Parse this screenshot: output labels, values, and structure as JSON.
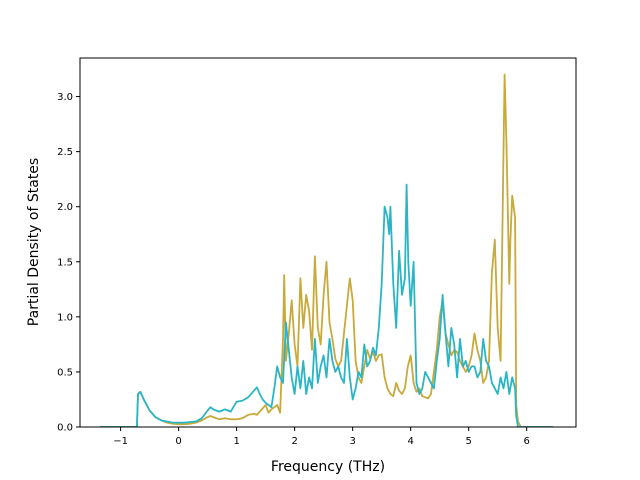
{
  "chart_data": {
    "type": "line",
    "title": "",
    "xlabel": "Frequency (THz)",
    "ylabel": "Partial Density of States",
    "xlim": [
      -1.7,
      6.85
    ],
    "ylim": [
      0.0,
      3.35
    ],
    "xticks": [
      -1,
      0,
      1,
      2,
      3,
      4,
      5,
      6
    ],
    "yticks": [
      0.0,
      0.5,
      1.0,
      1.5,
      2.0,
      2.5,
      3.0
    ],
    "xtick_labels": [
      "−1",
      "0",
      "1",
      "2",
      "3",
      "4",
      "5",
      "6"
    ],
    "ytick_labels": [
      "0.0",
      "0.5",
      "1.0",
      "1.5",
      "2.0",
      "2.5",
      "3.0"
    ],
    "grid": false,
    "legend": "none",
    "series": [
      {
        "color": "#c8a93a",
        "x": [
          -1.35,
          -0.72,
          -0.7,
          -0.66,
          -0.6,
          -0.5,
          -0.4,
          -0.3,
          -0.2,
          -0.1,
          0.0,
          0.1,
          0.2,
          0.3,
          0.4,
          0.5,
          0.55,
          0.6,
          0.7,
          0.8,
          0.9,
          1.0,
          1.1,
          1.2,
          1.3,
          1.35,
          1.4,
          1.45,
          1.5,
          1.55,
          1.6,
          1.65,
          1.7,
          1.75,
          1.8,
          1.82,
          1.85,
          1.9,
          1.95,
          2.0,
          2.05,
          2.1,
          2.15,
          2.2,
          2.25,
          2.3,
          2.35,
          2.4,
          2.45,
          2.5,
          2.55,
          2.6,
          2.65,
          2.7,
          2.75,
          2.8,
          2.85,
          2.9,
          2.95,
          3.0,
          3.05,
          3.1,
          3.15,
          3.2,
          3.25,
          3.3,
          3.35,
          3.4,
          3.45,
          3.5,
          3.55,
          3.6,
          3.65,
          3.7,
          3.75,
          3.8,
          3.85,
          3.9,
          3.95,
          4.0,
          4.05,
          4.1,
          4.15,
          4.2,
          4.25,
          4.3,
          4.35,
          4.4,
          4.45,
          4.5,
          4.55,
          4.6,
          4.65,
          4.7,
          4.75,
          4.8,
          4.85,
          4.9,
          4.95,
          5.0,
          5.05,
          5.1,
          5.15,
          5.2,
          5.25,
          5.3,
          5.35,
          5.4,
          5.45,
          5.5,
          5.55,
          5.6,
          5.62,
          5.65,
          5.7,
          5.72,
          5.75,
          5.8,
          5.82,
          5.85,
          5.9,
          6.45
        ],
        "y": [
          0.0,
          0.0,
          0.3,
          0.32,
          0.25,
          0.15,
          0.09,
          0.06,
          0.04,
          0.03,
          0.025,
          0.025,
          0.03,
          0.04,
          0.06,
          0.09,
          0.1,
          0.09,
          0.07,
          0.08,
          0.07,
          0.07,
          0.08,
          0.11,
          0.12,
          0.11,
          0.14,
          0.17,
          0.2,
          0.13,
          0.16,
          0.18,
          0.2,
          0.13,
          0.8,
          1.38,
          0.6,
          0.85,
          1.15,
          0.75,
          0.55,
          1.35,
          0.9,
          1.2,
          1.05,
          0.7,
          1.55,
          0.9,
          0.75,
          1.2,
          1.5,
          0.95,
          0.8,
          0.62,
          0.55,
          0.6,
          0.85,
          1.1,
          1.35,
          1.15,
          0.6,
          0.45,
          0.4,
          0.55,
          0.7,
          0.62,
          0.68,
          0.6,
          0.65,
          0.66,
          0.45,
          0.35,
          0.3,
          0.28,
          0.4,
          0.33,
          0.3,
          0.35,
          0.55,
          0.65,
          0.4,
          0.32,
          0.35,
          0.28,
          0.27,
          0.26,
          0.3,
          0.5,
          0.7,
          1.0,
          1.15,
          0.85,
          0.75,
          0.65,
          0.7,
          0.68,
          0.6,
          0.55,
          0.5,
          0.55,
          0.65,
          0.85,
          0.7,
          0.6,
          0.4,
          0.45,
          0.6,
          1.4,
          1.7,
          0.9,
          0.6,
          2.5,
          3.2,
          2.6,
          1.3,
          1.7,
          2.1,
          1.9,
          0.2,
          0.05,
          0.0,
          0.0
        ]
      },
      {
        "color": "#2ab5c6",
        "x": [
          -1.35,
          -0.72,
          -0.7,
          -0.66,
          -0.6,
          -0.5,
          -0.4,
          -0.3,
          -0.2,
          -0.1,
          0.0,
          0.1,
          0.2,
          0.3,
          0.4,
          0.5,
          0.55,
          0.6,
          0.7,
          0.8,
          0.9,
          1.0,
          1.1,
          1.2,
          1.3,
          1.35,
          1.4,
          1.45,
          1.5,
          1.55,
          1.6,
          1.65,
          1.7,
          1.75,
          1.8,
          1.85,
          1.9,
          1.95,
          2.0,
          2.05,
          2.1,
          2.15,
          2.2,
          2.25,
          2.3,
          2.35,
          2.4,
          2.45,
          2.5,
          2.55,
          2.6,
          2.65,
          2.7,
          2.75,
          2.8,
          2.85,
          2.9,
          2.95,
          3.0,
          3.05,
          3.1,
          3.15,
          3.2,
          3.25,
          3.3,
          3.35,
          3.4,
          3.45,
          3.5,
          3.55,
          3.6,
          3.63,
          3.65,
          3.7,
          3.75,
          3.8,
          3.85,
          3.9,
          3.93,
          3.96,
          4.0,
          4.05,
          4.1,
          4.15,
          4.2,
          4.25,
          4.3,
          4.35,
          4.4,
          4.45,
          4.5,
          4.55,
          4.6,
          4.65,
          4.7,
          4.75,
          4.8,
          4.85,
          4.9,
          4.95,
          5.0,
          5.05,
          5.1,
          5.15,
          5.2,
          5.25,
          5.3,
          5.35,
          5.4,
          5.45,
          5.5,
          5.55,
          5.6,
          5.65,
          5.7,
          5.75,
          5.8,
          5.82,
          5.85,
          6.45
        ],
        "y": [
          0.0,
          0.0,
          0.3,
          0.32,
          0.25,
          0.15,
          0.09,
          0.06,
          0.05,
          0.04,
          0.04,
          0.04,
          0.045,
          0.05,
          0.08,
          0.15,
          0.18,
          0.16,
          0.14,
          0.16,
          0.14,
          0.23,
          0.24,
          0.27,
          0.33,
          0.36,
          0.3,
          0.25,
          0.22,
          0.2,
          0.18,
          0.35,
          0.55,
          0.45,
          0.4,
          0.95,
          0.7,
          0.45,
          0.3,
          0.55,
          0.35,
          0.6,
          0.3,
          0.45,
          0.35,
          0.8,
          0.4,
          0.55,
          0.65,
          0.45,
          0.8,
          0.6,
          0.5,
          0.55,
          0.45,
          0.4,
          0.8,
          0.45,
          0.25,
          0.35,
          0.5,
          0.45,
          0.75,
          0.55,
          0.6,
          0.72,
          0.65,
          0.9,
          1.3,
          2.0,
          1.9,
          1.75,
          2.0,
          1.3,
          0.9,
          1.6,
          1.2,
          1.35,
          2.2,
          1.5,
          1.1,
          1.5,
          0.4,
          0.3,
          0.35,
          0.5,
          0.45,
          0.4,
          0.35,
          0.6,
          0.8,
          1.2,
          0.85,
          0.55,
          0.9,
          0.75,
          0.45,
          0.8,
          0.55,
          0.6,
          0.5,
          0.55,
          0.55,
          0.45,
          0.5,
          0.8,
          0.6,
          0.55,
          0.4,
          0.35,
          0.3,
          0.45,
          0.35,
          0.5,
          0.3,
          0.45,
          0.35,
          0.1,
          0.0,
          0.0
        ]
      }
    ]
  }
}
